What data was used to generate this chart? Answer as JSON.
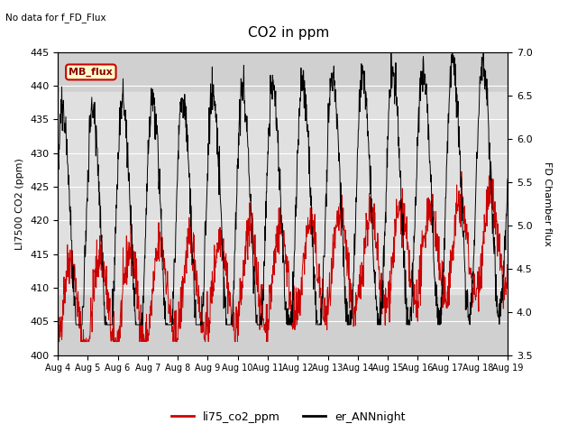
{
  "title": "CO2 in ppm",
  "top_left_text": "No data for f_FD_Flux",
  "legend_box_text": "MB_flux",
  "ylabel_left": "LI7500 CO2 (ppm)",
  "ylabel_right": "FD Chamber flux",
  "ylim_left": [
    400,
    445
  ],
  "ylim_right": [
    3.5,
    7.0
  ],
  "yticks_left": [
    400,
    405,
    410,
    415,
    420,
    425,
    430,
    435,
    440,
    445
  ],
  "yticks_right": [
    3.5,
    4.0,
    4.5,
    5.0,
    5.5,
    6.0,
    6.5,
    7.0
  ],
  "xtick_labels": [
    "Aug 4",
    "Aug 5",
    "Aug 6",
    "Aug 7",
    "Aug 8",
    "Aug 9",
    "Aug 10",
    "Aug 11",
    "Aug 12",
    "Aug 13",
    "Aug 14",
    "Aug 15",
    "Aug 16",
    "Aug 17",
    "Aug 18",
    "Aug 19"
  ],
  "color_red": "#cc0000",
  "color_black": "#000000",
  "legend_label_red": "li75_co2_ppm",
  "legend_label_black": "er_ANNnight",
  "bg_band_color": "#e0e0e0",
  "bg_outer_color": "#d0d0d0",
  "n_days": 15,
  "seed": 42
}
